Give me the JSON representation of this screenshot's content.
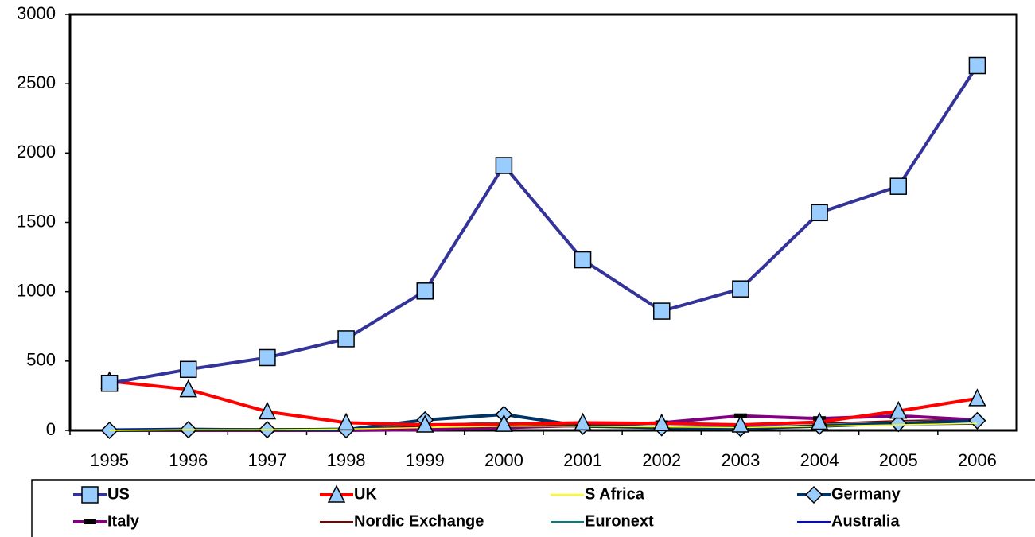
{
  "chart_data": {
    "type": "line",
    "categories": [
      "1995",
      "1996",
      "1997",
      "1998",
      "1999",
      "2000",
      "2001",
      "2002",
      "2003",
      "2004",
      "2005",
      "2006"
    ],
    "ylim": [
      0,
      3000
    ],
    "yticks": [
      0,
      500,
      1000,
      1500,
      2000,
      2500,
      3000
    ],
    "series": [
      {
        "name": "US",
        "color": "#333399",
        "marker": "square",
        "values": [
          340,
          440,
          525,
          660,
          1005,
          1910,
          1230,
          860,
          1020,
          1570,
          1760,
          2630
        ]
      },
      {
        "name": "UK",
        "color": "#ff0000",
        "marker": "triangle",
        "values": [
          355,
          295,
          135,
          55,
          40,
          45,
          55,
          50,
          40,
          60,
          140,
          230
        ]
      },
      {
        "name": "S Africa",
        "color": "#ffff00",
        "marker": "none",
        "values": [
          0,
          5,
          5,
          10,
          20,
          30,
          30,
          25,
          20,
          30,
          40,
          50
        ]
      },
      {
        "name": "Germany",
        "color": "#003366",
        "marker": "diamond",
        "values": [
          0,
          5,
          5,
          5,
          75,
          115,
          30,
          20,
          15,
          30,
          50,
          70
        ]
      },
      {
        "name": "Italy",
        "color": "#800080",
        "marker": "dash",
        "values": [
          0,
          0,
          0,
          0,
          5,
          20,
          35,
          55,
          105,
          85,
          105,
          75
        ]
      },
      {
        "name": "Nordic Exchange",
        "color": "#800000",
        "marker": "none",
        "values": [
          5,
          5,
          5,
          10,
          30,
          50,
          60,
          50,
          40,
          50,
          70,
          80
        ]
      },
      {
        "name": "Euronext",
        "color": "#008080",
        "marker": "none",
        "values": [
          5,
          10,
          10,
          15,
          40,
          60,
          40,
          30,
          20,
          40,
          60,
          70
        ]
      },
      {
        "name": "Australia",
        "color": "#0000ff",
        "marker": "none",
        "values": [
          10,
          15,
          10,
          15,
          20,
          25,
          25,
          25,
          30,
          35,
          40,
          45
        ]
      }
    ]
  }
}
